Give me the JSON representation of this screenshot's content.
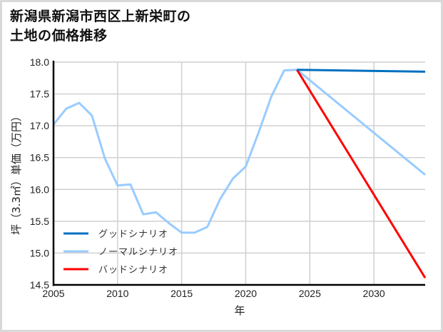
{
  "title": {
    "line1": "新潟県新潟市西区上新栄町の",
    "line2": "土地の価格推移"
  },
  "chart_data": {
    "type": "line",
    "title": "新潟県新潟市西区上新栄町の土地の価格推移",
    "xlabel": "年",
    "ylabel": "坪（3.3㎡）単価（万円）",
    "xlim": [
      2005,
      2034
    ],
    "ylim": [
      14.5,
      18.0
    ],
    "xticks": [
      2005,
      2010,
      2015,
      2020,
      2025,
      2030
    ],
    "yticks": [
      14.5,
      15.0,
      15.5,
      16.0,
      16.5,
      17.0,
      17.5,
      18.0
    ],
    "grid": true,
    "legend_position": "lower left",
    "series": [
      {
        "name": "グッドシナリオ",
        "color": "#0070c0",
        "x": [
          2024,
          2034
        ],
        "values": [
          17.88,
          17.85
        ]
      },
      {
        "name": "ノーマルシナリオ",
        "color": "#99ccff",
        "x": [
          2005,
          2006,
          2007,
          2008,
          2009,
          2010,
          2011,
          2012,
          2013,
          2014,
          2015,
          2016,
          2017,
          2018,
          2019,
          2020,
          2021,
          2022,
          2023,
          2024,
          2034
        ],
        "values": [
          17.02,
          17.27,
          17.36,
          17.16,
          16.49,
          16.06,
          16.08,
          15.61,
          15.64,
          15.47,
          15.32,
          15.32,
          15.41,
          15.85,
          16.17,
          16.36,
          16.89,
          17.46,
          17.87,
          17.88,
          16.23
        ]
      },
      {
        "name": "バッドシナリオ",
        "color": "#ff0000",
        "x": [
          2024,
          2034
        ],
        "values": [
          17.88,
          14.61
        ]
      }
    ]
  }
}
